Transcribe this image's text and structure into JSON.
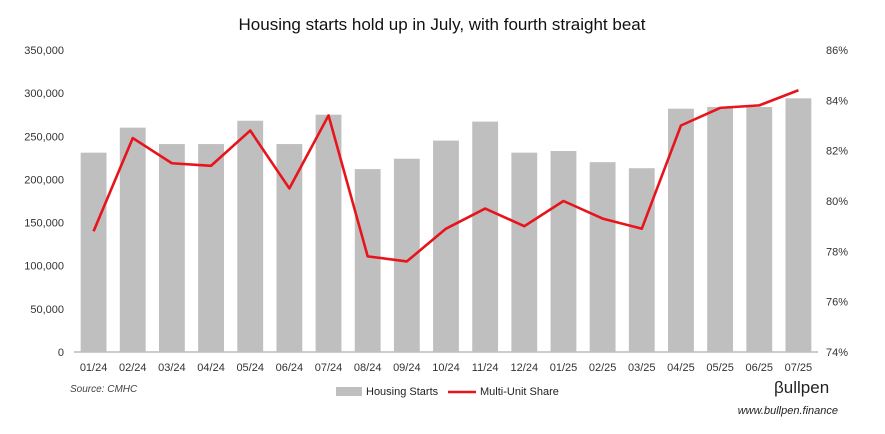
{
  "chart_data": {
    "type": "bar",
    "title": "Housing starts hold up in July, with fourth straight beat",
    "categories": [
      "01/24",
      "02/24",
      "03/24",
      "04/24",
      "05/24",
      "06/24",
      "07/24",
      "08/24",
      "09/24",
      "10/24",
      "11/24",
      "12/24",
      "01/25",
      "02/25",
      "03/25",
      "04/25",
      "05/25",
      "06/25",
      "07/25"
    ],
    "series": [
      {
        "name": "Housing Starts",
        "type": "bar",
        "axis": "left",
        "color": "#bfbfbf",
        "values": [
          231000,
          260000,
          241000,
          241000,
          268000,
          241000,
          275000,
          212000,
          224000,
          245000,
          267000,
          231000,
          233000,
          220000,
          213000,
          282000,
          284000,
          284000,
          294000
        ]
      },
      {
        "name": "Multi-Unit Share",
        "type": "line",
        "axis": "right",
        "color": "#e8141b",
        "values": [
          78.8,
          82.5,
          81.5,
          81.4,
          82.8,
          80.5,
          83.4,
          77.8,
          77.6,
          78.9,
          79.7,
          79.0,
          80.0,
          79.3,
          78.9,
          83.0,
          83.7,
          83.8,
          84.4
        ]
      }
    ],
    "y_left": {
      "ylim": [
        0,
        350000
      ],
      "ticks": [
        "0",
        "50,000",
        "100,000",
        "150,000",
        "200,000",
        "250,000",
        "300,000",
        "350,000"
      ]
    },
    "y_right": {
      "ylim": [
        74,
        86
      ],
      "ticks": [
        "74%",
        "76%",
        "78%",
        "80%",
        "82%",
        "84%",
        "86%"
      ]
    },
    "grid": false,
    "legend_position": "bottom-center"
  },
  "source_note": "Source: CMHC",
  "brand": {
    "name": "βullpen",
    "url": "www.bullpen.finance"
  }
}
